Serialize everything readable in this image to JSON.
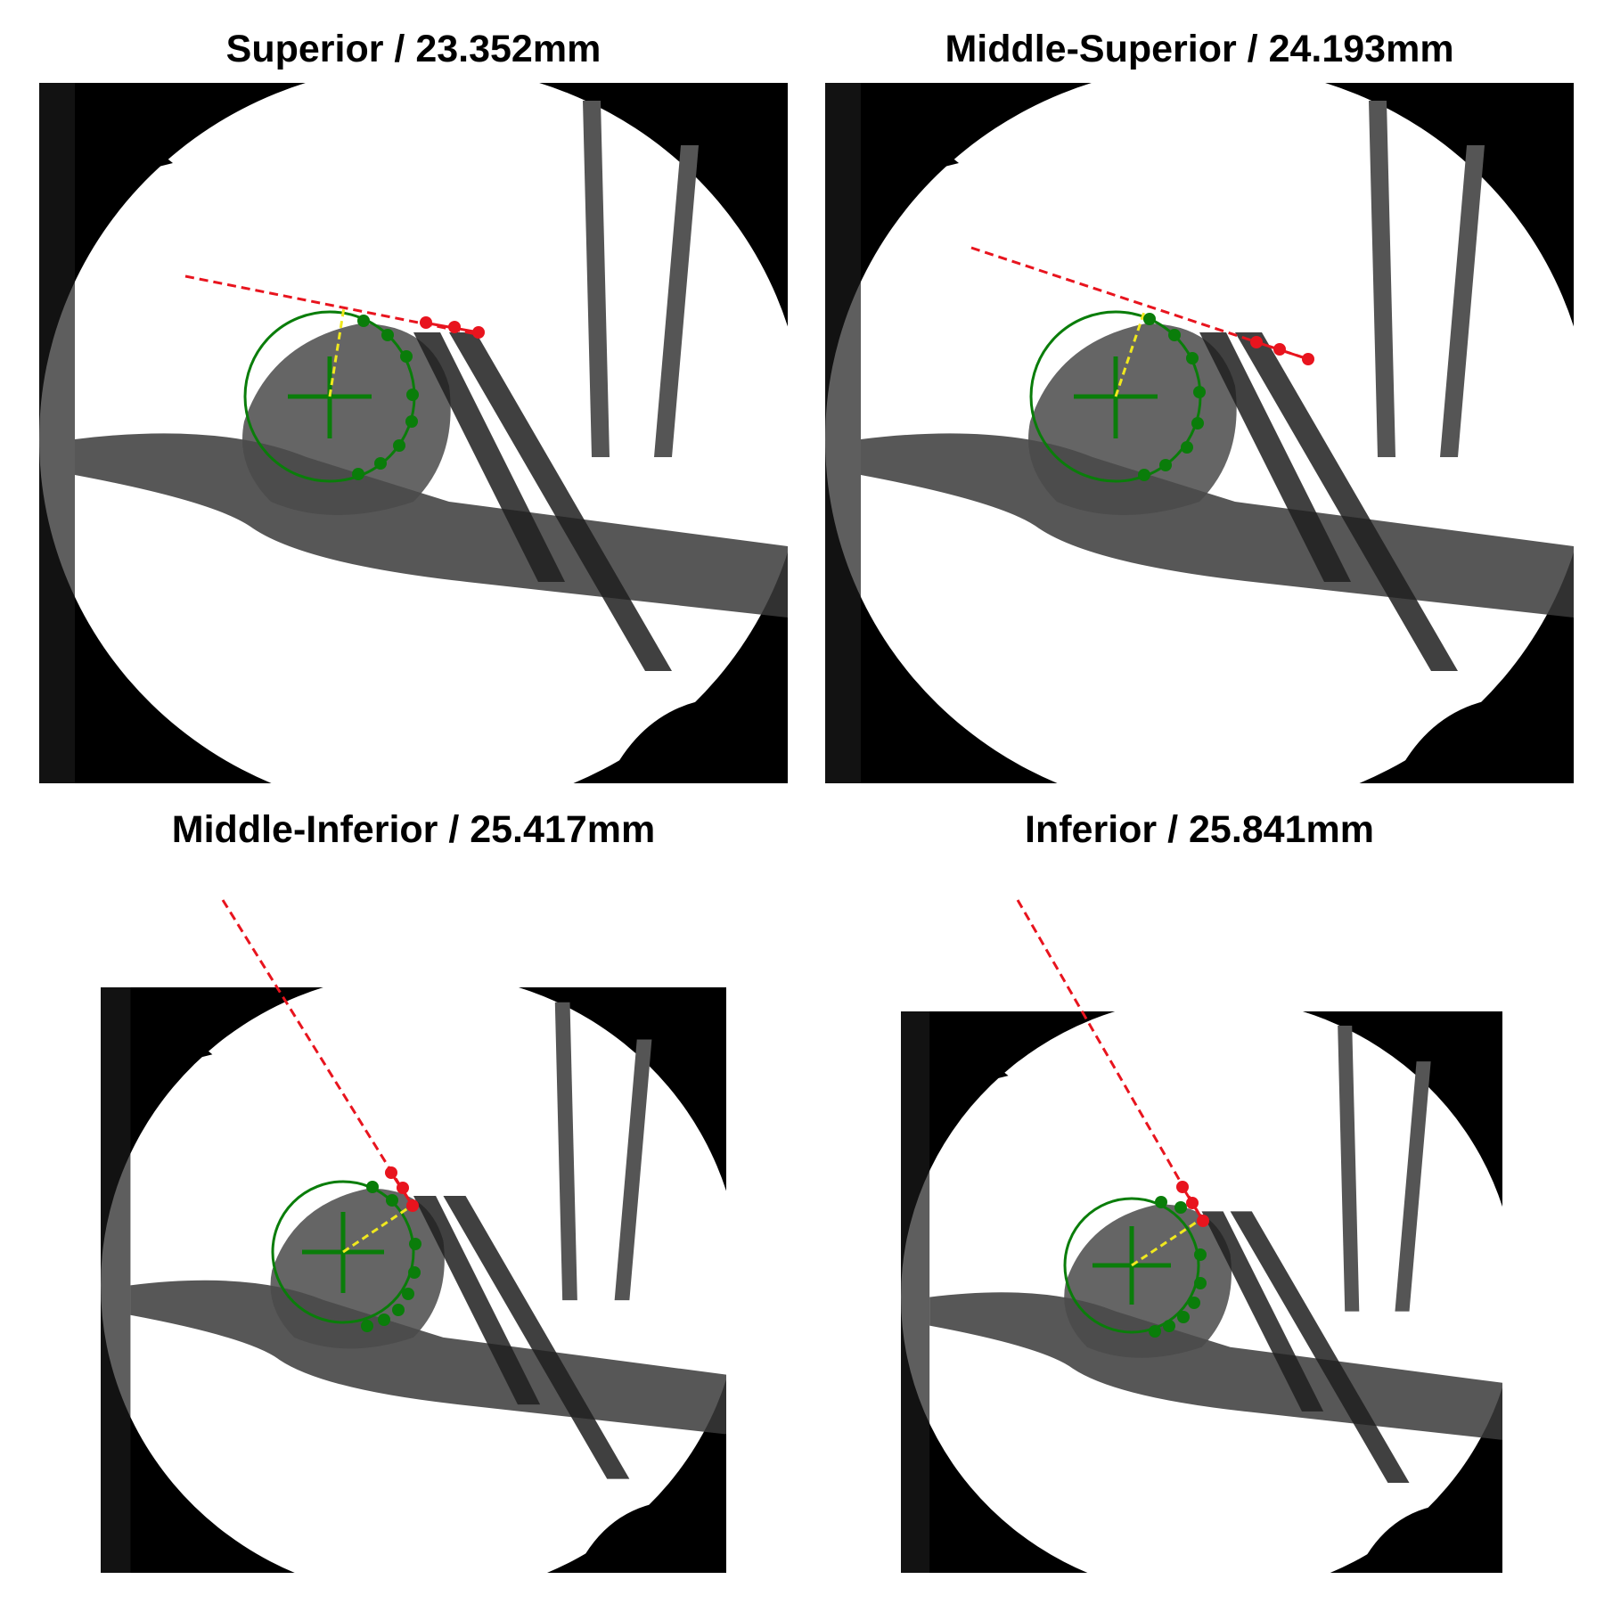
{
  "panels": [
    {
      "label": "Superior",
      "measurement": "23.352mm",
      "title": "Superior / 23.352mm"
    },
    {
      "label": "Middle-Superior",
      "measurement": "24.193mm",
      "title": "Middle-Superior / 24.193mm"
    },
    {
      "label": "Middle-Inferior",
      "measurement": "25.417mm",
      "title": "Middle-Inferior / 25.417mm"
    },
    {
      "label": "Inferior",
      "measurement": "25.841mm",
      "title": "Inferior / 25.841mm"
    }
  ],
  "colors": {
    "fitted_circle": "#0a7d0a",
    "contour_points": "#0a7d0a",
    "reference_line": "#e8141e",
    "radius_line": "#f0e81e",
    "background": "#000000",
    "field_of_view": "#ffffff"
  },
  "image_content": "fluoroscopic x-ray of shoulder joint with fitted humeral head circle"
}
